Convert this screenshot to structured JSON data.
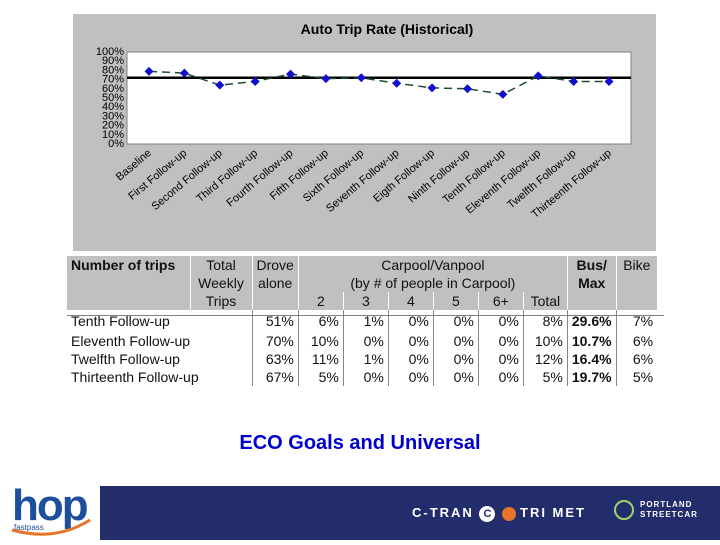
{
  "chart_data": {
    "type": "line",
    "title": "Auto Trip Rate (Historical)",
    "categories": [
      "Baseline",
      "First Follow-up",
      "Second Follow-up",
      "Third Follow-up",
      "Fourth Follow-up",
      "Fifth Follow-up",
      "Sixth Follow-up",
      "Seventh Follow-up",
      "Eigth Follow-up",
      "Ninth Follow-up",
      "Tenth Follow-up",
      "Eleventh Follow-up",
      "Twelfth Follow-up",
      "Thirteenth Follow-up"
    ],
    "values": [
      79,
      77,
      64,
      68,
      76,
      71,
      72,
      66,
      61,
      60,
      54,
      74,
      68,
      68
    ],
    "reference_value": 72,
    "y_ticks": [
      "100%",
      "90%",
      "80%",
      "70%",
      "60%",
      "50%",
      "40%",
      "30%",
      "20%",
      "10%",
      "0%"
    ],
    "ylim": [
      0,
      100
    ],
    "colors": {
      "marker": "#1010cc",
      "line": "#1a4d2e",
      "reference": "#000000"
    }
  },
  "table": {
    "headers": {
      "trips": "Number of trips",
      "total_weekly": [
        "Total",
        "Weekly",
        "Trips"
      ],
      "drove_alone": [
        "Drove",
        "alone"
      ],
      "carpool": [
        "Carpool/Vanpool",
        "(by # of people in Carpool)"
      ],
      "carpool_cols": [
        "2",
        "3",
        "4",
        "5",
        "6+",
        "Total"
      ],
      "bus": [
        "Bus/",
        "Max"
      ],
      "bike": "Bike"
    },
    "rows": [
      {
        "name": "Tenth Follow-up",
        "drove": "51%",
        "c2": "6%",
        "c3": "1%",
        "c4": "0%",
        "c5": "0%",
        "c6": "0%",
        "ctotal": "8%",
        "bus": "29.6%",
        "bike": "7%"
      },
      {
        "name": "Eleventh Follow-up",
        "drove": "70%",
        "c2": "10%",
        "c3": "0%",
        "c4": "0%",
        "c5": "0%",
        "c6": "0%",
        "ctotal": "10%",
        "bus": "10.7%",
        "bike": "6%"
      },
      {
        "name": "Twelfth Follow-up",
        "drove": "63%",
        "c2": "11%",
        "c3": "1%",
        "c4": "0%",
        "c5": "0%",
        "c6": "0%",
        "ctotal": "12%",
        "bus": "16.4%",
        "bike": "6%"
      },
      {
        "name": "Thirteenth Follow-up",
        "drove": "67%",
        "c2": "5%",
        "c3": "0%",
        "c4": "0%",
        "c5": "0%",
        "c6": "0%",
        "ctotal": "5%",
        "bus": "19.7%",
        "bike": "5%"
      }
    ]
  },
  "caption": "ECO Goals and Universal",
  "footer": {
    "logo_text": "hop",
    "logo_sub": "fastpass",
    "partners": [
      "C-TRAN",
      "TRI MET",
      "PORTLAND STREETCAR"
    ],
    "bar_color": "#232d6b",
    "logo_color": "#1e4f9c",
    "accent_color": "#e8742a"
  }
}
